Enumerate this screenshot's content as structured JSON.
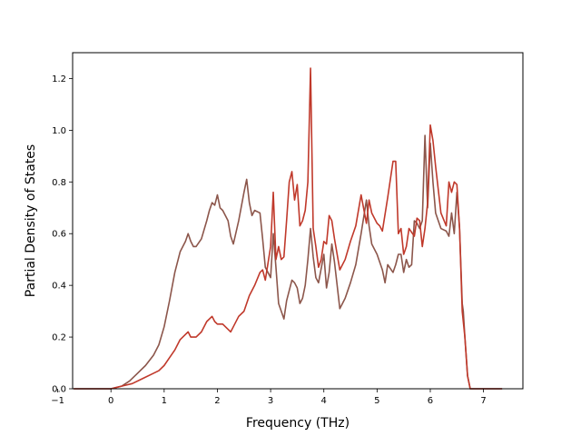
{
  "chart_data": {
    "type": "line",
    "title": "",
    "xlabel": "Frequency (THz)",
    "ylabel": "Partial Density of States",
    "xlim": [
      -0.72,
      7.74
    ],
    "ylim": [
      0.0,
      1.3
    ],
    "xticks": [
      -1,
      0,
      1,
      2,
      3,
      4,
      5,
      6,
      7
    ],
    "yticks": [
      0.0,
      0.2,
      0.4,
      0.6,
      0.8,
      1.0,
      1.2
    ],
    "grid": false,
    "legend": "none",
    "series": [
      {
        "color": "#8c564b",
        "x": [
          -0.7,
          0.0,
          0.2,
          0.35,
          0.5,
          0.65,
          0.8,
          0.9,
          1.0,
          1.1,
          1.2,
          1.3,
          1.4,
          1.45,
          1.5,
          1.55,
          1.6,
          1.7,
          1.8,
          1.85,
          1.9,
          1.95,
          2.0,
          2.05,
          2.1,
          2.2,
          2.25,
          2.3,
          2.4,
          2.5,
          2.55,
          2.6,
          2.65,
          2.7,
          2.8,
          2.85,
          2.9,
          3.0,
          3.05,
          3.1,
          3.15,
          3.2,
          3.25,
          3.3,
          3.4,
          3.45,
          3.5,
          3.55,
          3.6,
          3.65,
          3.7,
          3.75,
          3.8,
          3.85,
          3.9,
          4.0,
          4.05,
          4.1,
          4.15,
          4.2,
          4.3,
          4.35,
          4.4,
          4.5,
          4.6,
          4.7,
          4.8,
          4.85,
          4.9,
          5.0,
          5.1,
          5.15,
          5.2,
          5.3,
          5.35,
          5.4,
          5.45,
          5.5,
          5.55,
          5.6,
          5.65,
          5.7,
          5.75,
          5.8,
          5.85,
          5.9,
          5.95,
          6.0,
          6.05,
          6.1,
          6.2,
          6.3,
          6.35,
          6.4,
          6.45,
          6.5,
          6.55,
          6.6,
          6.62,
          6.65,
          6.7,
          6.75,
          7.0,
          7.35
        ],
        "y": [
          0.0,
          0.0,
          0.01,
          0.03,
          0.06,
          0.09,
          0.13,
          0.17,
          0.24,
          0.34,
          0.45,
          0.53,
          0.57,
          0.6,
          0.57,
          0.55,
          0.55,
          0.58,
          0.65,
          0.69,
          0.72,
          0.71,
          0.75,
          0.7,
          0.69,
          0.65,
          0.59,
          0.56,
          0.65,
          0.76,
          0.81,
          0.72,
          0.67,
          0.69,
          0.68,
          0.58,
          0.47,
          0.43,
          0.6,
          0.47,
          0.33,
          0.3,
          0.27,
          0.34,
          0.42,
          0.41,
          0.39,
          0.33,
          0.35,
          0.4,
          0.5,
          0.62,
          0.51,
          0.43,
          0.41,
          0.52,
          0.39,
          0.45,
          0.56,
          0.49,
          0.31,
          0.33,
          0.35,
          0.41,
          0.48,
          0.6,
          0.73,
          0.63,
          0.56,
          0.52,
          0.46,
          0.41,
          0.48,
          0.45,
          0.48,
          0.52,
          0.52,
          0.45,
          0.5,
          0.47,
          0.48,
          0.65,
          0.64,
          0.62,
          0.65,
          0.98,
          0.7,
          0.95,
          0.8,
          0.68,
          0.62,
          0.61,
          0.59,
          0.68,
          0.6,
          0.76,
          0.62,
          0.33,
          0.3,
          0.2,
          0.05,
          0.0,
          0.0,
          0.0
        ]
      },
      {
        "color": "#c0392b",
        "x": [
          -0.7,
          0.0,
          0.2,
          0.4,
          0.6,
          0.8,
          0.9,
          1.0,
          1.1,
          1.2,
          1.3,
          1.4,
          1.45,
          1.5,
          1.6,
          1.7,
          1.8,
          1.9,
          1.95,
          2.0,
          2.1,
          2.2,
          2.25,
          2.3,
          2.4,
          2.5,
          2.6,
          2.7,
          2.8,
          2.85,
          2.9,
          3.0,
          3.05,
          3.1,
          3.15,
          3.2,
          3.25,
          3.3,
          3.35,
          3.4,
          3.45,
          3.5,
          3.55,
          3.6,
          3.65,
          3.7,
          3.75,
          3.8,
          3.85,
          3.9,
          3.95,
          4.0,
          4.05,
          4.1,
          4.15,
          4.2,
          4.3,
          4.4,
          4.5,
          4.6,
          4.7,
          4.8,
          4.85,
          4.9,
          5.0,
          5.05,
          5.1,
          5.2,
          5.3,
          5.35,
          5.4,
          5.45,
          5.5,
          5.55,
          5.6,
          5.7,
          5.75,
          5.8,
          5.85,
          5.9,
          5.95,
          6.0,
          6.05,
          6.1,
          6.2,
          6.3,
          6.35,
          6.4,
          6.45,
          6.5,
          6.55,
          6.6,
          6.62,
          6.65,
          6.7,
          6.75,
          7.0,
          7.35
        ],
        "y": [
          0.0,
          0.0,
          0.01,
          0.02,
          0.04,
          0.06,
          0.07,
          0.09,
          0.12,
          0.15,
          0.19,
          0.21,
          0.22,
          0.2,
          0.2,
          0.22,
          0.26,
          0.28,
          0.26,
          0.25,
          0.25,
          0.23,
          0.22,
          0.24,
          0.28,
          0.3,
          0.36,
          0.4,
          0.45,
          0.46,
          0.42,
          0.55,
          0.76,
          0.5,
          0.55,
          0.5,
          0.51,
          0.65,
          0.8,
          0.84,
          0.73,
          0.79,
          0.63,
          0.65,
          0.69,
          0.8,
          1.24,
          0.62,
          0.55,
          0.47,
          0.5,
          0.57,
          0.56,
          0.67,
          0.65,
          0.58,
          0.46,
          0.5,
          0.57,
          0.63,
          0.75,
          0.64,
          0.73,
          0.68,
          0.64,
          0.63,
          0.61,
          0.74,
          0.88,
          0.88,
          0.6,
          0.62,
          0.52,
          0.55,
          0.62,
          0.59,
          0.66,
          0.65,
          0.55,
          0.62,
          0.72,
          1.02,
          0.96,
          0.86,
          0.68,
          0.63,
          0.8,
          0.76,
          0.8,
          0.79,
          0.62,
          0.3,
          0.26,
          0.2,
          0.05,
          0.0,
          0.0,
          0.0
        ]
      }
    ]
  }
}
